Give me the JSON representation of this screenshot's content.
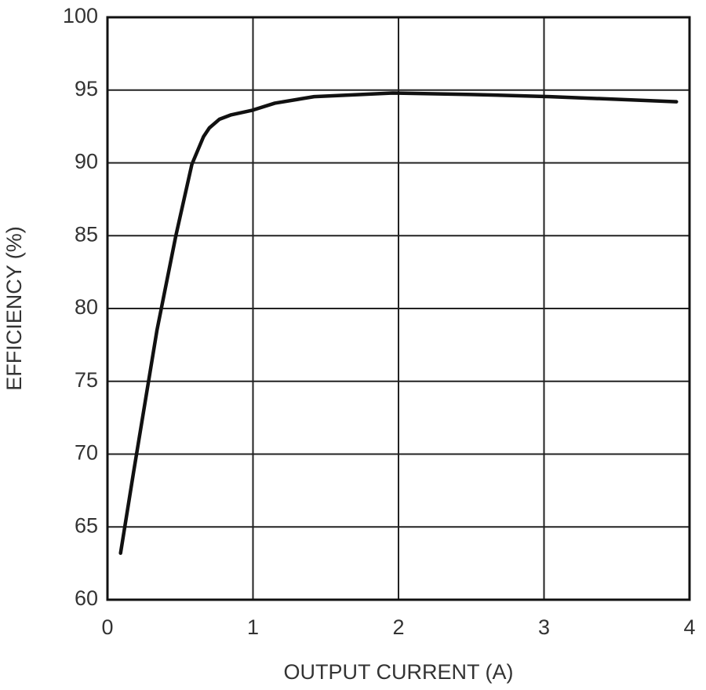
{
  "chart_data": {
    "type": "line",
    "xlabel": "OUTPUT CURRENT (A)",
    "ylabel": "EFFICIENCY (%)",
    "x": [
      0.09,
      0.18,
      0.34,
      0.47,
      0.58,
      0.66,
      0.7,
      0.77,
      0.85,
      0.99,
      1.15,
      1.42,
      1.96,
      2.5,
      3.04,
      3.91
    ],
    "series": [
      {
        "name": "Efficiency",
        "color": "#111111",
        "values": [
          63.2,
          68.8,
          78.5,
          85.0,
          89.9,
          91.8,
          92.4,
          93.0,
          93.3,
          93.6,
          94.1,
          94.55,
          94.8,
          94.7,
          94.55,
          94.2
        ]
      }
    ],
    "xlim": [
      0,
      4
    ],
    "xticks": [
      0,
      1,
      2,
      3,
      4
    ],
    "ylim": [
      60,
      100
    ],
    "yticks": [
      60,
      65,
      70,
      75,
      80,
      85,
      90,
      95,
      100
    ],
    "grid": true
  }
}
